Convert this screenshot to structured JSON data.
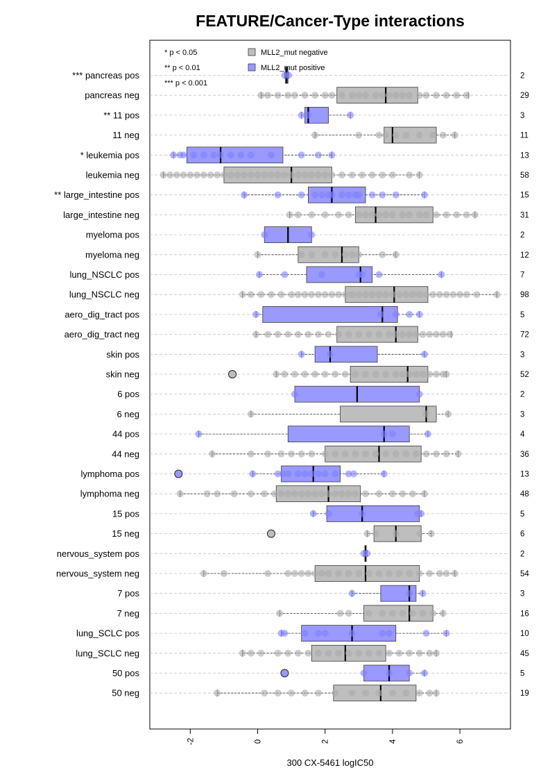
{
  "chart_data": {
    "type": "boxplot",
    "title": "FEATURE/Cancer-Type interactions",
    "xlabel": "300 CX-5461 logIC50",
    "xlim": [
      -3.2,
      7.5
    ],
    "xticks": [
      "-2",
      "0",
      "2",
      "4",
      "6"
    ],
    "xtick_values": [
      -2,
      0,
      2,
      4,
      6
    ],
    "legend": {
      "placement": "top-left",
      "significance": [
        "* p < 0.05",
        "** p < 0.01",
        "*** p < 0.001"
      ],
      "series": [
        {
          "name": "MLL2_mut negative",
          "color": "#bebebe"
        },
        {
          "name": "MLL2_mut positive",
          "color": "#9999ff"
        }
      ]
    },
    "colors": {
      "neg_box": "#bebebe",
      "neg_point": "#aaaaaa",
      "pos_box": "#9999ff",
      "pos_point": "#8080ff",
      "outline": "#3a3a3a",
      "grid": "#c0c0c0"
    },
    "rows": [
      {
        "label": "*** pancreas pos",
        "n": "2",
        "group": "pos",
        "q1": 0.82,
        "median": 0.86,
        "q3": 0.9,
        "wlo": 0.8,
        "whi": 0.92,
        "points": [
          0.8,
          0.92
        ],
        "outliers": []
      },
      {
        "label": "pancreas neg",
        "n": "29",
        "group": "neg",
        "q1": 2.35,
        "median": 3.8,
        "q3": 4.75,
        "wlo": 0.1,
        "whi": 6.25,
        "points": [
          0.1,
          0.3,
          0.6,
          0.9,
          1.1,
          1.4,
          1.7,
          2.0,
          2.2,
          2.5,
          2.8,
          3.0,
          3.2,
          3.5,
          3.7,
          3.9,
          4.1,
          4.3,
          4.5,
          4.8,
          5.0,
          5.3,
          5.6,
          5.9,
          6.2
        ],
        "outliers": []
      },
      {
        "label": "** 11 pos",
        "n": "3",
        "group": "pos",
        "q1": 1.4,
        "median": 1.5,
        "q3": 2.1,
        "wlo": 1.3,
        "whi": 2.75,
        "points": [
          1.3,
          1.5,
          2.75
        ],
        "outliers": []
      },
      {
        "label": "11 neg",
        "n": "11",
        "group": "neg",
        "q1": 3.75,
        "median": 4.0,
        "q3": 5.3,
        "wlo": 1.7,
        "whi": 5.85,
        "points": [
          1.7,
          3.0,
          3.6,
          3.8,
          4.1,
          4.4,
          4.8,
          5.2,
          5.5,
          5.85
        ],
        "outliers": []
      },
      {
        "label": "* leukemia pos",
        "n": "13",
        "group": "pos",
        "q1": -2.1,
        "median": -1.1,
        "q3": 0.75,
        "wlo": -2.5,
        "whi": 2.2,
        "points": [
          -2.5,
          -2.3,
          -2.2,
          -1.9,
          -1.6,
          -1.3,
          -1.1,
          -0.8,
          -0.5,
          -0.2,
          0.4,
          1.3,
          1.8,
          2.2
        ],
        "outliers": []
      },
      {
        "label": "leukemia neg",
        "n": "58",
        "group": "neg",
        "q1": -1.0,
        "median": 1.0,
        "q3": 2.2,
        "wlo": -2.8,
        "whi": 4.8,
        "points": [
          -2.8,
          -2.6,
          -2.4,
          -2.2,
          -2.0,
          -1.8,
          -1.6,
          -1.4,
          -1.2,
          -1.0,
          -0.8,
          -0.6,
          -0.4,
          -0.2,
          0.0,
          0.2,
          0.4,
          0.6,
          0.8,
          1.0,
          1.2,
          1.4,
          1.6,
          1.8,
          2.0,
          2.2,
          2.5,
          2.8,
          3.1,
          3.4,
          3.7,
          4.0,
          4.5,
          4.8
        ],
        "outliers": []
      },
      {
        "label": "** large_intestine pos",
        "n": "15",
        "group": "pos",
        "q1": 1.5,
        "median": 2.2,
        "q3": 3.2,
        "wlo": -0.4,
        "whi": 4.95,
        "points": [
          -0.4,
          0.6,
          1.3,
          1.7,
          1.9,
          2.1,
          2.2,
          2.5,
          2.7,
          2.9,
          3.0,
          3.4,
          3.7,
          4.1,
          4.95
        ],
        "outliers": []
      },
      {
        "label": "large_intestine neg",
        "n": "31",
        "group": "neg",
        "q1": 2.9,
        "median": 3.5,
        "q3": 5.2,
        "wlo": 0.95,
        "whi": 6.45,
        "points": [
          0.95,
          1.2,
          1.6,
          2.0,
          2.4,
          2.7,
          3.0,
          3.2,
          3.4,
          3.6,
          3.8,
          4.0,
          4.3,
          4.5,
          4.8,
          5.0,
          5.3,
          5.6,
          5.9,
          6.2,
          6.45
        ],
        "outliers": []
      },
      {
        "label": "myeloma pos",
        "n": "2",
        "group": "pos",
        "q1": 0.2,
        "median": 0.9,
        "q3": 1.6,
        "wlo": 0.2,
        "whi": 1.6,
        "points": [
          0.2,
          1.6
        ],
        "outliers": []
      },
      {
        "label": "myeloma neg",
        "n": "12",
        "group": "neg",
        "q1": 1.2,
        "median": 2.5,
        "q3": 3.0,
        "wlo": 0.0,
        "whi": 4.1,
        "points": [
          0.0,
          1.3,
          1.6,
          2.0,
          2.3,
          2.6,
          2.8,
          3.0,
          3.7,
          4.1
        ],
        "outliers": []
      },
      {
        "label": "lung_NSCLC pos",
        "n": "7",
        "group": "pos",
        "q1": 1.45,
        "median": 3.05,
        "q3": 3.4,
        "wlo": 0.05,
        "whi": 5.45,
        "points": [
          0.05,
          0.8,
          1.9,
          3.0,
          3.1,
          3.6,
          5.45
        ],
        "outliers": []
      },
      {
        "label": "lung_NSCLC neg",
        "n": "98",
        "group": "neg",
        "q1": 2.6,
        "median": 4.05,
        "q3": 5.05,
        "wlo": -0.45,
        "whi": 7.1,
        "points": [
          -0.45,
          -0.2,
          0.1,
          0.4,
          0.7,
          1.0,
          1.2,
          1.4,
          1.6,
          1.8,
          2.0,
          2.2,
          2.4,
          2.6,
          2.8,
          3.0,
          3.2,
          3.4,
          3.6,
          3.8,
          4.0,
          4.2,
          4.4,
          4.6,
          4.8,
          5.0,
          5.2,
          5.4,
          5.6,
          5.8,
          6.0,
          6.2,
          6.5,
          7.1
        ],
        "outliers": []
      },
      {
        "label": "aero_dig_tract pos",
        "n": "5",
        "group": "pos",
        "q1": 0.15,
        "median": 3.7,
        "q3": 4.15,
        "wlo": -0.05,
        "whi": 4.8,
        "points": [
          -0.05,
          3.65,
          4.1,
          4.5,
          4.8
        ],
        "outliers": []
      },
      {
        "label": "aero_dig_tract neg",
        "n": "72",
        "group": "neg",
        "q1": 2.35,
        "median": 4.1,
        "q3": 4.75,
        "wlo": -0.05,
        "whi": 5.75,
        "points": [
          -0.05,
          0.3,
          0.6,
          0.9,
          1.2,
          1.5,
          1.8,
          2.1,
          2.4,
          2.7,
          3.0,
          3.3,
          3.6,
          3.9,
          4.1,
          4.3,
          4.5,
          4.7,
          4.9,
          5.1,
          5.3,
          5.5,
          5.7
        ],
        "outliers": []
      },
      {
        "label": "skin pos",
        "n": "3",
        "group": "pos",
        "q1": 1.7,
        "median": 2.15,
        "q3": 3.55,
        "wlo": 1.3,
        "whi": 4.95,
        "points": [
          1.3,
          2.15,
          4.95
        ],
        "outliers": []
      },
      {
        "label": "skin neg",
        "n": "52",
        "group": "neg",
        "q1": 2.75,
        "median": 4.45,
        "q3": 5.05,
        "wlo": 0.55,
        "whi": 5.6,
        "points": [
          0.55,
          0.8,
          1.1,
          1.4,
          1.7,
          2.0,
          2.3,
          2.6,
          2.9,
          3.2,
          3.5,
          3.8,
          4.1,
          4.3,
          4.5,
          4.7,
          4.9,
          5.1,
          5.3,
          5.5,
          5.6
        ],
        "outliers": [
          -0.75
        ]
      },
      {
        "label": "6 pos",
        "n": "2",
        "group": "pos",
        "q1": 1.1,
        "median": 2.95,
        "q3": 4.8,
        "wlo": 1.1,
        "whi": 4.8,
        "points": [
          1.1,
          4.8
        ],
        "outliers": []
      },
      {
        "label": "6 neg",
        "n": "3",
        "group": "neg",
        "q1": 2.45,
        "median": 5.0,
        "q3": 5.3,
        "wlo": -0.2,
        "whi": 5.65,
        "points": [
          -0.2,
          5.0,
          5.65
        ],
        "outliers": []
      },
      {
        "label": "44 pos",
        "n": "4",
        "group": "pos",
        "q1": 0.9,
        "median": 3.75,
        "q3": 4.5,
        "wlo": -1.75,
        "whi": 5.05,
        "points": [
          -1.75,
          3.75,
          4.0,
          5.05
        ],
        "outliers": []
      },
      {
        "label": "44 neg",
        "n": "36",
        "group": "neg",
        "q1": 2.0,
        "median": 3.6,
        "q3": 4.85,
        "wlo": -1.35,
        "whi": 5.95,
        "points": [
          -1.35,
          -0.2,
          0.3,
          0.7,
          1.0,
          1.3,
          1.6,
          2.0,
          2.3,
          2.6,
          2.9,
          3.2,
          3.5,
          3.8,
          4.1,
          4.4,
          4.7,
          5.0,
          5.3,
          5.6,
          5.95
        ],
        "outliers": []
      },
      {
        "label": "lymphoma pos",
        "n": "13",
        "group": "pos",
        "q1": 0.7,
        "median": 1.65,
        "q3": 2.45,
        "wlo": -0.15,
        "whi": 3.75,
        "points": [
          -0.15,
          0.6,
          0.75,
          0.9,
          1.2,
          1.4,
          1.6,
          1.8,
          2.0,
          2.3,
          2.7,
          2.85,
          3.75
        ],
        "outliers": [
          -2.35
        ]
      },
      {
        "label": "lymphoma neg",
        "n": "48",
        "group": "neg",
        "q1": 0.55,
        "median": 2.1,
        "q3": 3.05,
        "wlo": -2.3,
        "whi": 4.95,
        "points": [
          -2.3,
          -1.5,
          -1.2,
          -0.7,
          -0.2,
          0.2,
          0.5,
          0.7,
          0.9,
          1.1,
          1.3,
          1.5,
          1.7,
          1.9,
          2.1,
          2.3,
          2.5,
          2.7,
          2.9,
          3.2,
          3.6,
          4.0,
          4.3,
          4.6,
          4.95
        ],
        "outliers": []
      },
      {
        "label": "15 pos",
        "n": "5",
        "group": "pos",
        "q1": 2.05,
        "median": 3.1,
        "q3": 4.8,
        "wlo": 1.65,
        "whi": 4.85,
        "points": [
          1.65,
          2.1,
          3.1,
          4.75,
          4.85
        ],
        "outliers": []
      },
      {
        "label": "15 neg",
        "n": "6",
        "group": "neg",
        "q1": 3.45,
        "median": 4.1,
        "q3": 4.85,
        "wlo": 3.25,
        "whi": 5.15,
        "points": [
          3.25,
          3.5,
          4.1,
          4.8,
          5.15
        ],
        "outliers": [
          0.4
        ]
      },
      {
        "label": "nervous_system pos",
        "n": "2",
        "group": "pos",
        "q1": 3.18,
        "median": 3.2,
        "q3": 3.22,
        "wlo": 3.15,
        "whi": 3.25,
        "points": [
          3.15,
          3.25
        ],
        "outliers": []
      },
      {
        "label": "nervous_system neg",
        "n": "54",
        "group": "neg",
        "q1": 1.7,
        "median": 3.2,
        "q3": 4.8,
        "wlo": -1.6,
        "whi": 5.85,
        "points": [
          -1.6,
          -1.0,
          0.3,
          0.9,
          1.1,
          1.3,
          1.5,
          1.7,
          1.9,
          2.1,
          2.4,
          2.7,
          3.0,
          3.3,
          3.6,
          3.9,
          4.2,
          4.5,
          4.8,
          5.1,
          5.4,
          5.6,
          5.85
        ],
        "outliers": []
      },
      {
        "label": "7 pos",
        "n": "3",
        "group": "pos",
        "q1": 3.65,
        "median": 4.5,
        "q3": 4.7,
        "wlo": 2.8,
        "whi": 4.9,
        "points": [
          2.8,
          4.5,
          4.9
        ],
        "outliers": []
      },
      {
        "label": "7 neg",
        "n": "16",
        "group": "neg",
        "q1": 3.15,
        "median": 4.5,
        "q3": 5.2,
        "wlo": 0.65,
        "whi": 5.5,
        "points": [
          0.65,
          2.45,
          2.7,
          3.3,
          3.7,
          4.0,
          4.3,
          4.6,
          4.9,
          5.2,
          5.5
        ],
        "outliers": []
      },
      {
        "label": "lung_SCLC pos",
        "n": "10",
        "group": "pos",
        "q1": 1.3,
        "median": 2.8,
        "q3": 4.1,
        "wlo": 0.7,
        "whi": 5.6,
        "points": [
          0.7,
          0.8,
          1.4,
          1.8,
          2.0,
          2.8,
          3.7,
          3.9,
          5.0,
          5.6
        ],
        "outliers": []
      },
      {
        "label": "lung_SCLC neg",
        "n": "45",
        "group": "neg",
        "q1": 1.6,
        "median": 2.6,
        "q3": 3.8,
        "wlo": -0.45,
        "whi": 5.3,
        "points": [
          -0.45,
          -0.2,
          0.1,
          0.6,
          0.9,
          1.2,
          1.5,
          1.8,
          2.1,
          2.4,
          2.7,
          3.0,
          3.3,
          3.6,
          3.9,
          4.2,
          4.5,
          4.8,
          5.1,
          5.3
        ],
        "outliers": []
      },
      {
        "label": "50 pos",
        "n": "5",
        "group": "pos",
        "q1": 3.15,
        "median": 3.9,
        "q3": 4.5,
        "wlo": 3.15,
        "whi": 4.95,
        "points": [
          3.15,
          3.9,
          4.5,
          4.95
        ],
        "outliers": [
          0.8
        ]
      },
      {
        "label": "50 neg",
        "n": "19",
        "group": "neg",
        "q1": 2.25,
        "median": 3.65,
        "q3": 4.7,
        "wlo": -1.2,
        "whi": 5.3,
        "points": [
          -1.2,
          0.2,
          0.6,
          1.0,
          1.4,
          1.8,
          2.3,
          2.8,
          3.2,
          3.6,
          4.0,
          4.4,
          4.8,
          5.1,
          5.3
        ],
        "outliers": []
      }
    ]
  }
}
